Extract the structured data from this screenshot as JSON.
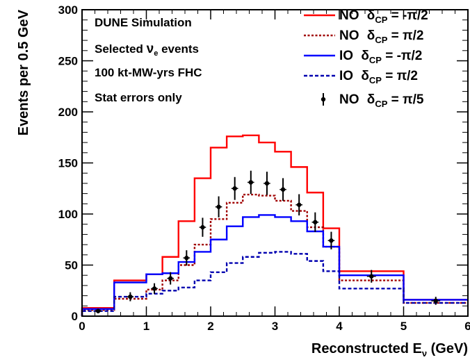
{
  "chart_data": {
    "type": "line",
    "xlabel_main": "Reconstructed E",
    "xlabel_sub": "ν",
    "xlabel_unit": " (GeV)",
    "ylabel": "Events per 0.5 GeV",
    "xlim": [
      0,
      6
    ],
    "ylim": [
      0,
      300
    ],
    "x_ticks": [
      "0",
      "1",
      "2",
      "3",
      "4",
      "5",
      "6"
    ],
    "y_ticks": [
      "0",
      "50",
      "100",
      "150",
      "200",
      "250",
      "300"
    ],
    "annotations": [
      {
        "text": "DUNE Simulation"
      },
      {
        "pre": "Selected ",
        "greek": "ν",
        "sub": "e",
        "post": " events"
      },
      {
        "text": "100 kt-MW-yrs FHC"
      },
      {
        "text": "Stat errors only"
      }
    ],
    "bin_edges": [
      0,
      0.5,
      1,
      1.25,
      1.5,
      1.75,
      2,
      2.25,
      2.5,
      2.75,
      3,
      3.25,
      3.5,
      3.75,
      4,
      5,
      6
    ],
    "series": [
      {
        "name_a": "NO",
        "name_b": "δ",
        "name_sub": "CP",
        "name_c": " = -π/2",
        "color": "#ff0000",
        "dash": "solid",
        "values": [
          8,
          35,
          41,
          58,
          93,
          135,
          165,
          176,
          177,
          170,
          161,
          146,
          121,
          86,
          44,
          16
        ]
      },
      {
        "name_a": "NO",
        "name_b": "δ",
        "name_sub": "CP",
        "name_c": " =  π/2",
        "color": "#a00000",
        "dash": "dotted",
        "values": [
          6,
          17,
          26,
          35,
          50,
          70,
          95,
          111,
          119,
          118,
          113,
          103,
          87,
          68,
          35,
          13
        ]
      },
      {
        "name_a": "IO",
        "name_b": "δ",
        "name_sub": "CP",
        "name_c": " = -π/2",
        "color": "#0000ff",
        "dash": "solid",
        "values": [
          7,
          33,
          41,
          42,
          53,
          63,
          75,
          88,
          97,
          99,
          97,
          93,
          83,
          68,
          40,
          16
        ]
      },
      {
        "name_a": "IO",
        "name_b": "δ",
        "name_sub": "CP",
        "name_c": " =  π/2",
        "color": "#0000b0",
        "dash": "dashed",
        "values": [
          5,
          19,
          22,
          25,
          28,
          35,
          43,
          52,
          58,
          62,
          63,
          61,
          54,
          44,
          27,
          13
        ]
      }
    ],
    "points": {
      "name_a": "NO",
      "name_b": "δ",
      "name_sub": "CP",
      "name_c": " =  π/5",
      "color": "#000000",
      "x": [
        0.25,
        0.75,
        1.125,
        1.375,
        1.625,
        1.875,
        2.125,
        2.375,
        2.625,
        2.875,
        3.125,
        3.375,
        3.625,
        3.875,
        4.5,
        5.5
      ],
      "y": [
        5,
        19,
        27,
        37,
        57,
        87,
        107,
        125,
        131,
        130,
        124,
        109,
        92,
        74,
        39,
        15
      ],
      "yerr": [
        2.2,
        4.4,
        5.2,
        6.1,
        7.5,
        9.3,
        10.3,
        11.2,
        11.4,
        11.4,
        11.1,
        10.4,
        9.6,
        8.6,
        6.2,
        3.9
      ]
    }
  }
}
